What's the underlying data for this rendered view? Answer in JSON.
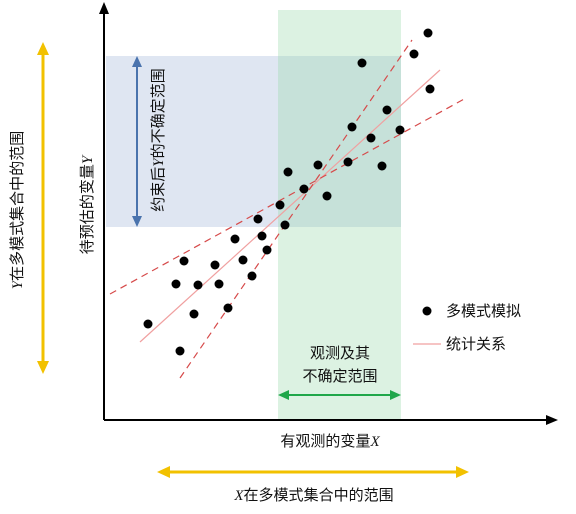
{
  "labels": {
    "x_axis": "有观测的变量X",
    "y_axis": "待预估的变量Y",
    "obs_box_line1": "观测及其",
    "obs_box_line2": "不确定范围",
    "y_uncertainty": "约束后Y的不确定范围",
    "x_ensemble_range": "X在多模式集合中的范围",
    "y_ensemble_range": "Y在多模式集合中的范围"
  },
  "legend": {
    "points": "多模式模拟",
    "line": "统计关系"
  },
  "colors": {
    "observation_band": "#dcf2e2",
    "constrained_band": "#dfe6f2",
    "overlap": "#c6e1d9",
    "green_arrow": "#1fa74a",
    "blue_arrow": "#4a73ad",
    "orange_arrow": "#f2c100",
    "regression_line": "#f0a0a0",
    "confidence_line": "#d64a4a",
    "points": "#000000"
  },
  "icons": {
    "legend_marker": "filled-circle-icon",
    "legend_line": "line-icon"
  }
}
